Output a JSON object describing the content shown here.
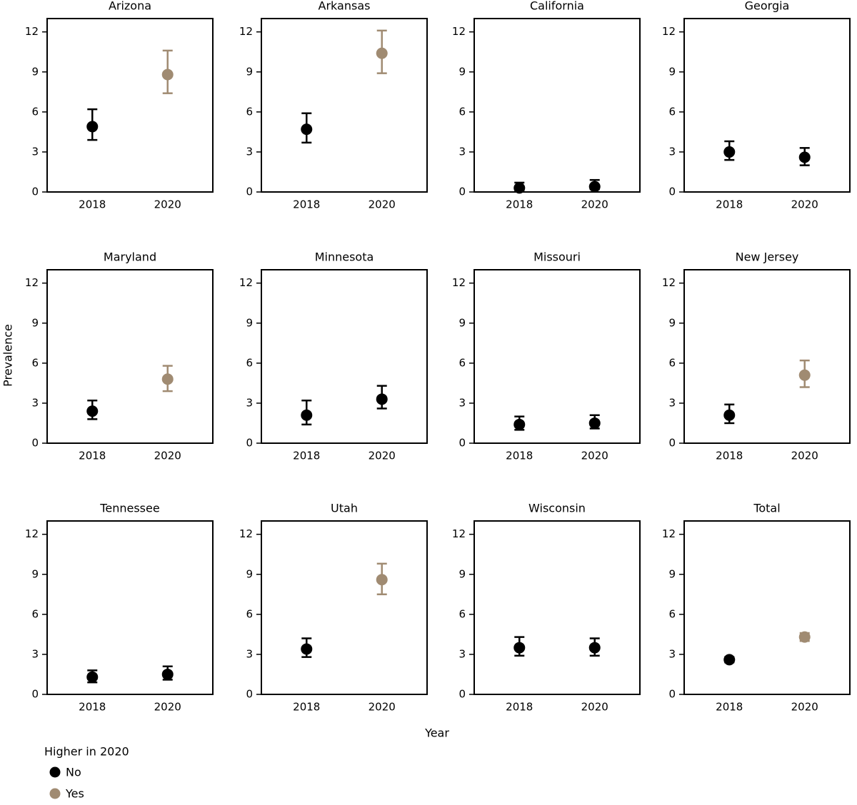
{
  "ylabel": "Prevalence",
  "xlabel": "Year",
  "legend": {
    "title": "Higher in 2020",
    "entries": [
      {
        "name": "No",
        "color": "#000000"
      },
      {
        "name": "Yes",
        "color": "#a08b72"
      }
    ]
  },
  "chart_data": [
    {
      "type": "errorbar",
      "title": "Arizona",
      "categories": [
        "2018",
        "2020"
      ],
      "values": [
        4.9,
        8.8
      ],
      "lower": [
        3.9,
        7.4
      ],
      "upper": [
        6.2,
        10.6
      ],
      "colors": [
        "#000000",
        "#a08b72"
      ],
      "ylim": [
        0,
        13
      ],
      "yticks": [
        0,
        3,
        6,
        9,
        12
      ]
    },
    {
      "type": "errorbar",
      "title": "Arkansas",
      "categories": [
        "2018",
        "2020"
      ],
      "values": [
        4.7,
        10.4
      ],
      "lower": [
        3.7,
        8.9
      ],
      "upper": [
        5.9,
        12.1
      ],
      "colors": [
        "#000000",
        "#a08b72"
      ],
      "ylim": [
        0,
        13
      ],
      "yticks": [
        0,
        3,
        6,
        9,
        12
      ]
    },
    {
      "type": "errorbar",
      "title": "California",
      "categories": [
        "2018",
        "2020"
      ],
      "values": [
        0.3,
        0.4
      ],
      "lower": [
        0.1,
        0.2
      ],
      "upper": [
        0.7,
        0.9
      ],
      "colors": [
        "#000000",
        "#000000"
      ],
      "ylim": [
        0,
        13
      ],
      "yticks": [
        0,
        3,
        6,
        9,
        12
      ]
    },
    {
      "type": "errorbar",
      "title": "Georgia",
      "categories": [
        "2018",
        "2020"
      ],
      "values": [
        3.0,
        2.6
      ],
      "lower": [
        2.4,
        2.0
      ],
      "upper": [
        3.8,
        3.3
      ],
      "colors": [
        "#000000",
        "#000000"
      ],
      "ylim": [
        0,
        13
      ],
      "yticks": [
        0,
        3,
        6,
        9,
        12
      ]
    },
    {
      "type": "errorbar",
      "title": "Maryland",
      "categories": [
        "2018",
        "2020"
      ],
      "values": [
        2.4,
        4.8
      ],
      "lower": [
        1.8,
        3.9
      ],
      "upper": [
        3.2,
        5.8
      ],
      "colors": [
        "#000000",
        "#a08b72"
      ],
      "ylim": [
        0,
        13
      ],
      "yticks": [
        0,
        3,
        6,
        9,
        12
      ]
    },
    {
      "type": "errorbar",
      "title": "Minnesota",
      "categories": [
        "2018",
        "2020"
      ],
      "values": [
        2.1,
        3.3
      ],
      "lower": [
        1.4,
        2.6
      ],
      "upper": [
        3.2,
        4.3
      ],
      "colors": [
        "#000000",
        "#000000"
      ],
      "ylim": [
        0,
        13
      ],
      "yticks": [
        0,
        3,
        6,
        9,
        12
      ]
    },
    {
      "type": "errorbar",
      "title": "Missouri",
      "categories": [
        "2018",
        "2020"
      ],
      "values": [
        1.4,
        1.5
      ],
      "lower": [
        1.0,
        1.1
      ],
      "upper": [
        2.0,
        2.1
      ],
      "colors": [
        "#000000",
        "#000000"
      ],
      "ylim": [
        0,
        13
      ],
      "yticks": [
        0,
        3,
        6,
        9,
        12
      ]
    },
    {
      "type": "errorbar",
      "title": "New Jersey",
      "categories": [
        "2018",
        "2020"
      ],
      "values": [
        2.1,
        5.1
      ],
      "lower": [
        1.5,
        4.2
      ],
      "upper": [
        2.9,
        6.2
      ],
      "colors": [
        "#000000",
        "#a08b72"
      ],
      "ylim": [
        0,
        13
      ],
      "yticks": [
        0,
        3,
        6,
        9,
        12
      ]
    },
    {
      "type": "errorbar",
      "title": "Tennessee",
      "categories": [
        "2018",
        "2020"
      ],
      "values": [
        1.3,
        1.5
      ],
      "lower": [
        0.9,
        1.1
      ],
      "upper": [
        1.8,
        2.1
      ],
      "colors": [
        "#000000",
        "#000000"
      ],
      "ylim": [
        0,
        13
      ],
      "yticks": [
        0,
        3,
        6,
        9,
        12
      ]
    },
    {
      "type": "errorbar",
      "title": "Utah",
      "categories": [
        "2018",
        "2020"
      ],
      "values": [
        3.4,
        8.6
      ],
      "lower": [
        2.8,
        7.5
      ],
      "upper": [
        4.2,
        9.8
      ],
      "colors": [
        "#000000",
        "#a08b72"
      ],
      "ylim": [
        0,
        13
      ],
      "yticks": [
        0,
        3,
        6,
        9,
        12
      ]
    },
    {
      "type": "errorbar",
      "title": "Wisconsin",
      "categories": [
        "2018",
        "2020"
      ],
      "values": [
        3.5,
        3.5
      ],
      "lower": [
        2.9,
        2.9
      ],
      "upper": [
        4.3,
        4.2
      ],
      "colors": [
        "#000000",
        "#000000"
      ],
      "ylim": [
        0,
        13
      ],
      "yticks": [
        0,
        3,
        6,
        9,
        12
      ]
    },
    {
      "type": "errorbar",
      "title": "Total",
      "categories": [
        "2018",
        "2020"
      ],
      "values": [
        2.6,
        4.3
      ],
      "lower": [
        2.4,
        4.0
      ],
      "upper": [
        2.8,
        4.6
      ],
      "colors": [
        "#000000",
        "#a08b72"
      ],
      "ylim": [
        0,
        13
      ],
      "yticks": [
        0,
        3,
        6,
        9,
        12
      ]
    }
  ]
}
